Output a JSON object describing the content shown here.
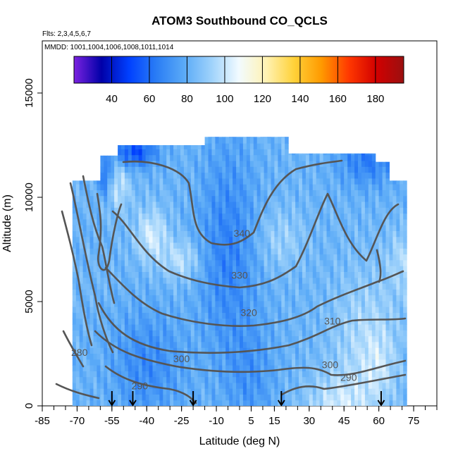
{
  "chart_data": {
    "type": "heatmap",
    "title": "ATOM3 Southbound CO_QCLS",
    "flights_label": "Flts: 2,3,4,5,6,7",
    "dates_label": "MMDD: 1001,1004,1006,1008,1011,1014",
    "xlabel": "Latitude (deg N)",
    "ylabel": "Altitude (m)",
    "xlim": [
      -85,
      85
    ],
    "ylim": [
      0,
      17500
    ],
    "x_ticks": [
      -85,
      -70,
      -55,
      -40,
      -25,
      -10,
      5,
      15,
      30,
      45,
      60,
      75
    ],
    "x_tick_labels": [
      "-85",
      "-70",
      "-55",
      "-40",
      "-25",
      "-10",
      "5",
      "15",
      "30",
      "45",
      "60",
      "75"
    ],
    "y_ticks": [
      0,
      5000,
      10000,
      15000
    ],
    "y_tick_labels": [
      "0",
      "5000",
      "10000",
      "15000"
    ],
    "colorbar": {
      "range": [
        20,
        195
      ],
      "ticks": [
        40,
        60,
        80,
        100,
        120,
        140,
        160,
        180
      ],
      "tick_labels": [
        "40",
        "60",
        "80",
        "100",
        "120",
        "140",
        "160",
        "180"
      ],
      "colors": [
        "#7b22e0",
        "#0000a8",
        "#0040ff",
        "#2a7df5",
        "#5aaaf7",
        "#9ed2fb",
        "#f2fbff",
        "#fff2b3",
        "#ffd23a",
        "#ff9a00",
        "#ff3800",
        "#d20000",
        "#9a1010"
      ]
    },
    "profile_markers_lat": [
      -55,
      -46,
      -20,
      18,
      61
    ],
    "theta_contour_labels": [
      {
        "text": "340",
        "lat": 1,
        "alt": 8100
      },
      {
        "text": "330",
        "lat": 0,
        "alt": 6100
      },
      {
        "text": "320",
        "lat": 4,
        "alt": 4300
      },
      {
        "text": "310",
        "lat": 40,
        "alt": 3900
      },
      {
        "text": "300",
        "lat": -25,
        "alt": 2100
      },
      {
        "text": "300",
        "lat": 39,
        "alt": 1800
      },
      {
        "text": "290",
        "lat": -43,
        "alt": 800
      },
      {
        "text": "290",
        "lat": 47,
        "alt": 1200
      },
      {
        "text": "280",
        "lat": -69,
        "alt": 2400
      }
    ]
  }
}
